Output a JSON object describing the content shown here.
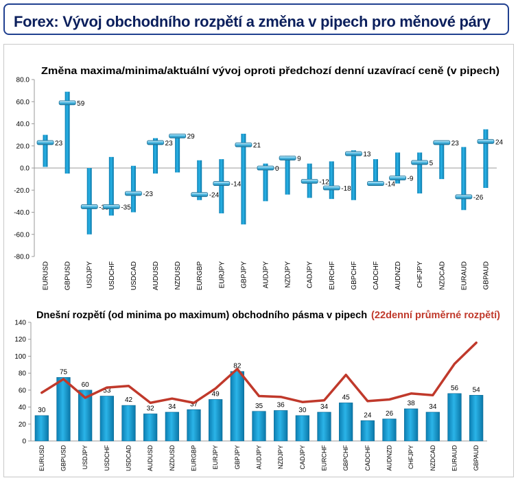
{
  "header": {
    "title": "Forex: Vývoj obchodního rozpětí a změna v pipech pro měnové páry"
  },
  "colors": {
    "bar": "#17a1d6",
    "line": "#c0392b",
    "accent": "#1f3f8f",
    "avg_title": "#c0392b"
  },
  "chart_data": [
    {
      "type": "range",
      "title": "Změna maxima/minima/aktuální vývoj oproti předchozí denní uzavírací ceně (v pipech)",
      "ylim": [
        -80,
        80
      ],
      "yticks": [
        "80.0",
        "60.0",
        "40.0",
        "20.0",
        "0.0",
        "-20.0",
        "-40.0",
        "-60.0",
        "-80.0"
      ],
      "categories": [
        "EURUSD",
        "GBPUSD",
        "USDJPY",
        "USDCHF",
        "USDCAD",
        "AUDUSD",
        "NZDUSD",
        "EURGBP",
        "EURJPY",
        "GBPJPY",
        "AUDJPY",
        "NZDJPY",
        "CADJPY",
        "EURCHF",
        "GBPCHF",
        "CADCHF",
        "AUDNZD",
        "CHFJPY",
        "NZDCAD",
        "EURAUD",
        "GBPAUD"
      ],
      "high": [
        30,
        69,
        0,
        10,
        2,
        27,
        30,
        7,
        8,
        31,
        4,
        11,
        4,
        6,
        16,
        8,
        14,
        14,
        24,
        19,
        35
      ],
      "low": [
        1,
        -5,
        -60,
        -43,
        -40,
        -5,
        -4,
        -29,
        -41,
        -51,
        -30,
        -24,
        -27,
        -28,
        -29,
        -16,
        -14,
        -23,
        -10,
        -38,
        -18
      ],
      "current": [
        23,
        59,
        -35,
        -35,
        -23,
        23,
        29,
        -24,
        -14,
        21,
        0,
        9,
        -12,
        -18,
        13,
        -14,
        -9,
        5,
        23,
        -26,
        24
      ],
      "labels": [
        "23",
        "59",
        "-35",
        "-35",
        "-23",
        "23",
        "29",
        "-24",
        "-14",
        "21",
        "0",
        "9",
        "-12",
        "-18",
        "13",
        "-14",
        "-9",
        "5",
        "23",
        "-26",
        "24"
      ]
    },
    {
      "type": "bar",
      "title": "Dnešní rozpětí (od minima po maximum) obchodního pásma v pipech",
      "title_avg": "(22denní průměrné rozpětí)",
      "ylim": [
        0,
        140
      ],
      "yticks": [
        "140",
        "120",
        "100",
        "80",
        "60",
        "40",
        "20",
        "0"
      ],
      "categories": [
        "EURUSD",
        "GBPUSD",
        "USDJPY",
        "USDCHF",
        "USDCAD",
        "AUDUSD",
        "NZDUSD",
        "EURGBP",
        "EURJPY",
        "GBPJPY",
        "AUDJPY",
        "NZDJPY",
        "CADJPY",
        "EURCHF",
        "GBPCHF",
        "CADCHF",
        "AUDNZD",
        "CHFJPY",
        "NZDCAD",
        "EURAUD",
        "GBPAUD"
      ],
      "values": [
        30,
        75,
        60,
        53,
        42,
        32,
        34,
        37,
        49,
        82,
        35,
        36,
        30,
        34,
        45,
        24,
        26,
        38,
        34,
        56,
        54
      ],
      "labels": [
        "30",
        "75",
        "60",
        "53",
        "42",
        "32",
        "34",
        "37",
        "49",
        "82",
        "35",
        "36",
        "30",
        "34",
        "45",
        "24",
        "26",
        "38",
        "34",
        "56",
        "54"
      ],
      "average": [
        57,
        73,
        51,
        63,
        65,
        45,
        50,
        45,
        62,
        85,
        53,
        52,
        46,
        48,
        78,
        47,
        49,
        56,
        54,
        91,
        116
      ]
    }
  ]
}
